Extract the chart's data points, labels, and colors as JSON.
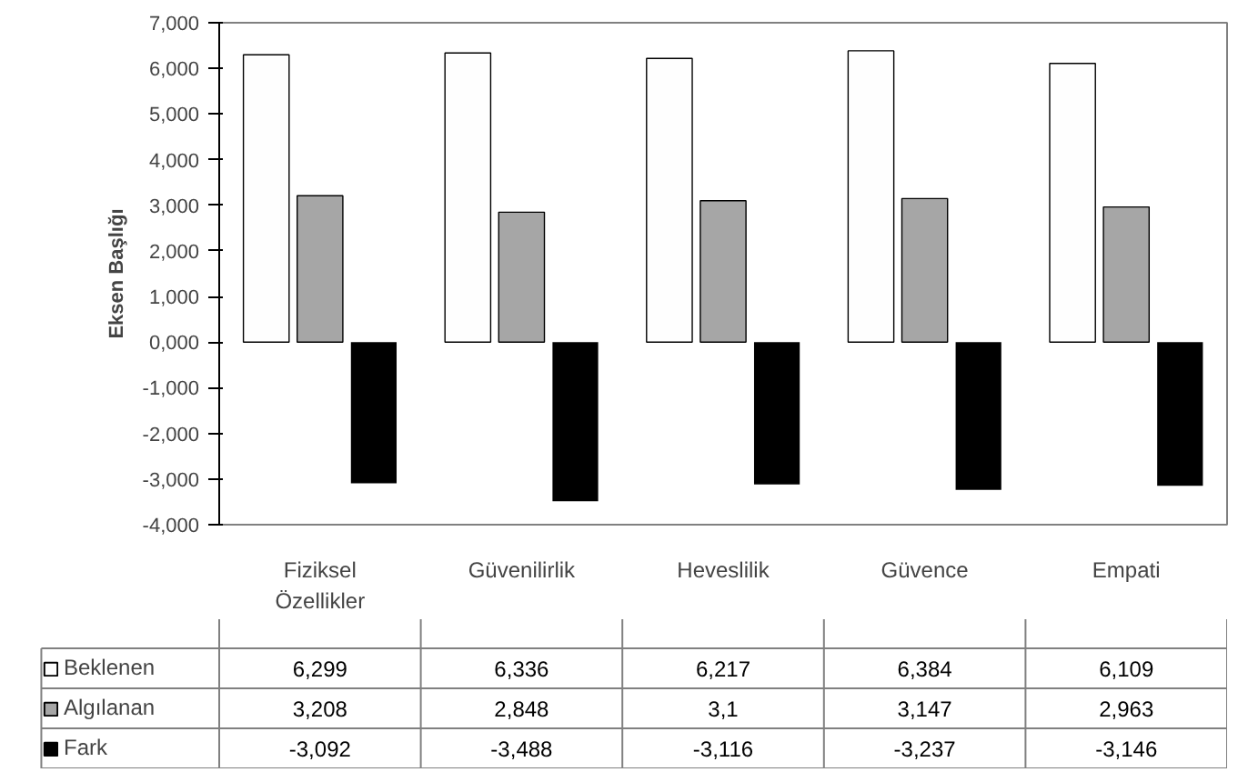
{
  "chart_data": {
    "type": "bar",
    "ylabel": "Eksen Başlığı",
    "categories": [
      "Fiziksel Özellikler",
      "Güvenilirlik",
      "Heveslilik",
      "Güvence",
      "Empati"
    ],
    "series": [
      {
        "name": "Beklenen",
        "color": "#fefefe",
        "values": [
          6.299,
          6.336,
          6.217,
          6.384,
          6.109
        ],
        "value_labels": [
          "6,299",
          "6,336",
          "6,217",
          "6,384",
          "6,109"
        ]
      },
      {
        "name": "Algılanan",
        "color": "#a6a6a6",
        "values": [
          3.208,
          2.848,
          3.1,
          3.147,
          2.963
        ],
        "value_labels": [
          "3,208",
          "2,848",
          "3,1",
          "3,147",
          "2,963"
        ]
      },
      {
        "name": "Fark",
        "color": "#000000",
        "values": [
          -3.092,
          -3.488,
          -3.116,
          -3.237,
          -3.146
        ],
        "value_labels": [
          "-3,092",
          "-3,488",
          "-3,116",
          "-3,237",
          "-3,146"
        ]
      }
    ],
    "ylim": [
      -4,
      7
    ],
    "yticks": [
      {
        "value": -4,
        "label": "-4,000"
      },
      {
        "value": -3,
        "label": "-3,000"
      },
      {
        "value": -2,
        "label": "-2,000"
      },
      {
        "value": -1,
        "label": "-1,000"
      },
      {
        "value": 0,
        "label": "0,000"
      },
      {
        "value": 1,
        "label": "1,000"
      },
      {
        "value": 2,
        "label": "2,000"
      },
      {
        "value": 3,
        "label": "3,000"
      },
      {
        "value": 4,
        "label": "4,000"
      },
      {
        "value": 5,
        "label": "5,000"
      },
      {
        "value": 6,
        "label": "6,000"
      },
      {
        "value": 7,
        "label": "7,000"
      }
    ],
    "grid": false,
    "legend": "bottom left"
  }
}
